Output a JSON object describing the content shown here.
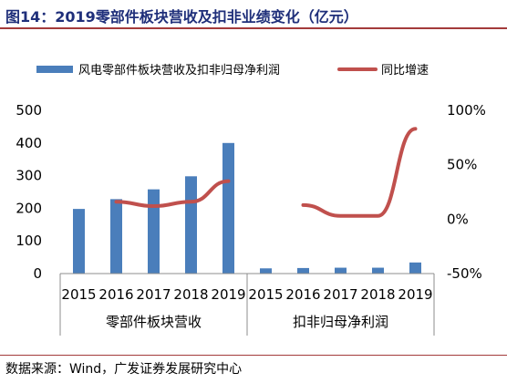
{
  "header": {
    "title": "图14：2019零部件板块营收及扣非业绩变化（亿元）"
  },
  "footer": {
    "source": "数据来源：Wind，广发证券发展研究中心"
  },
  "colors": {
    "bar": "#4a7ebb",
    "line": "#c0504d",
    "title": "#1f2f7a",
    "rule": "#a33b3b"
  },
  "chart_data": {
    "type": "bar",
    "legend": [
      "风电零部件板块营收及扣非归母净利润",
      "同比增速"
    ],
    "legend_position": "top",
    "categories": [
      "2015",
      "2016",
      "2017",
      "2018",
      "2019",
      "2015",
      "2016",
      "2017",
      "2018",
      "2019"
    ],
    "groups": [
      "零部件板块营收",
      "扣非归母净利润"
    ],
    "series": [
      {
        "name": "风电零部件板块营收及扣非归母净利润",
        "type": "bar",
        "axis": "left",
        "values": [
          198,
          228,
          258,
          298,
          400,
          16,
          17,
          18,
          18,
          34
        ]
      },
      {
        "name": "同比增速",
        "type": "line",
        "axis": "right",
        "values": [
          null,
          16,
          12,
          16,
          35,
          null,
          13,
          3,
          3,
          83
        ]
      }
    ],
    "y_left": {
      "ylim": [
        0,
        500
      ],
      "ticks": [
        "0",
        "100",
        "200",
        "300",
        "400",
        "500"
      ]
    },
    "y_right": {
      "ylim": [
        -50,
        100
      ],
      "ticks": [
        "-50%",
        "0%",
        "50%",
        "100%"
      ]
    },
    "grid": false
  }
}
